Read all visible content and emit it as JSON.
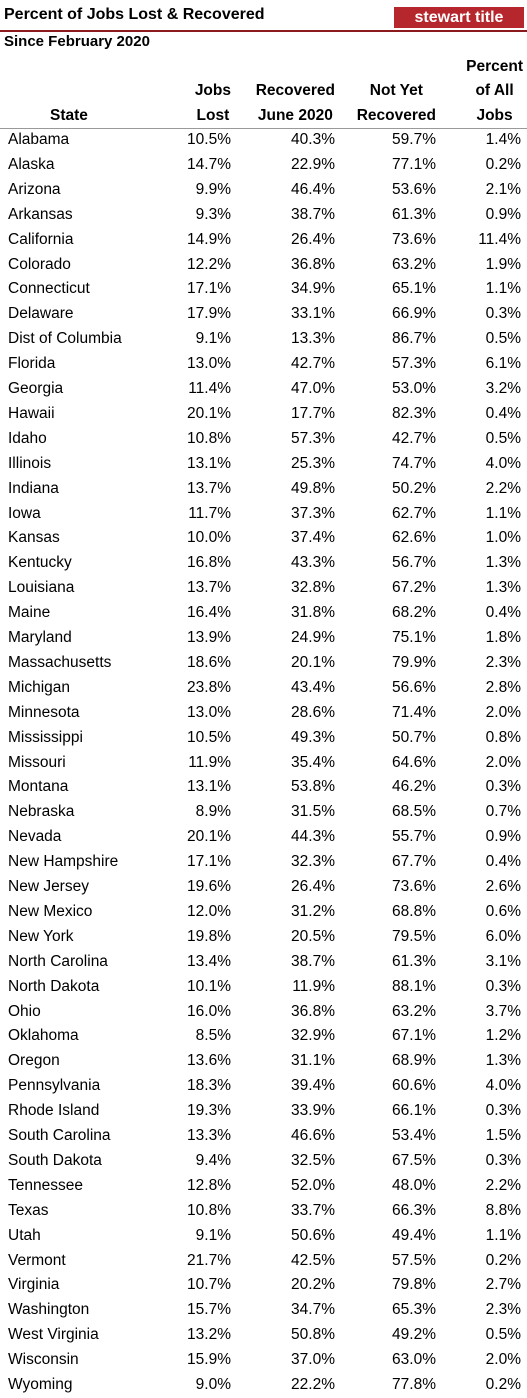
{
  "header": {
    "title": "Percent of Jobs Lost & Recovered",
    "logo": "stewart title",
    "subtitle": "Since February 2020"
  },
  "table": {
    "columns": [
      "State",
      "Jobs\nLost",
      "Recovered\nJune 2020",
      "Not Yet\nRecovered",
      "Percent\nof All\nJobs"
    ],
    "rows": [
      [
        "Alabama",
        "10.5%",
        "40.3%",
        "59.7%",
        "1.4%"
      ],
      [
        "Alaska",
        "14.7%",
        "22.9%",
        "77.1%",
        "0.2%"
      ],
      [
        "Arizona",
        "9.9%",
        "46.4%",
        "53.6%",
        "2.1%"
      ],
      [
        "Arkansas",
        "9.3%",
        "38.7%",
        "61.3%",
        "0.9%"
      ],
      [
        "California",
        "14.9%",
        "26.4%",
        "73.6%",
        "11.4%"
      ],
      [
        "Colorado",
        "12.2%",
        "36.8%",
        "63.2%",
        "1.9%"
      ],
      [
        "Connecticut",
        "17.1%",
        "34.9%",
        "65.1%",
        "1.1%"
      ],
      [
        "Delaware",
        "17.9%",
        "33.1%",
        "66.9%",
        "0.3%"
      ],
      [
        "Dist of Columbia",
        "9.1%",
        "13.3%",
        "86.7%",
        "0.5%"
      ],
      [
        "Florida",
        "13.0%",
        "42.7%",
        "57.3%",
        "6.1%"
      ],
      [
        "Georgia",
        "11.4%",
        "47.0%",
        "53.0%",
        "3.2%"
      ],
      [
        "Hawaii",
        "20.1%",
        "17.7%",
        "82.3%",
        "0.4%"
      ],
      [
        "Idaho",
        "10.8%",
        "57.3%",
        "42.7%",
        "0.5%"
      ],
      [
        "Illinois",
        "13.1%",
        "25.3%",
        "74.7%",
        "4.0%"
      ],
      [
        "Indiana",
        "13.7%",
        "49.8%",
        "50.2%",
        "2.2%"
      ],
      [
        "Iowa",
        "11.7%",
        "37.3%",
        "62.7%",
        "1.1%"
      ],
      [
        "Kansas",
        "10.0%",
        "37.4%",
        "62.6%",
        "1.0%"
      ],
      [
        "Kentucky",
        "16.8%",
        "43.3%",
        "56.7%",
        "1.3%"
      ],
      [
        "Louisiana",
        "13.7%",
        "32.8%",
        "67.2%",
        "1.3%"
      ],
      [
        "Maine",
        "16.4%",
        "31.8%",
        "68.2%",
        "0.4%"
      ],
      [
        "Maryland",
        "13.9%",
        "24.9%",
        "75.1%",
        "1.8%"
      ],
      [
        "Massachusetts",
        "18.6%",
        "20.1%",
        "79.9%",
        "2.3%"
      ],
      [
        "Michigan",
        "23.8%",
        "43.4%",
        "56.6%",
        "2.8%"
      ],
      [
        "Minnesota",
        "13.0%",
        "28.6%",
        "71.4%",
        "2.0%"
      ],
      [
        "Mississippi",
        "10.5%",
        "49.3%",
        "50.7%",
        "0.8%"
      ],
      [
        "Missouri",
        "11.9%",
        "35.4%",
        "64.6%",
        "2.0%"
      ],
      [
        "Montana",
        "13.1%",
        "53.8%",
        "46.2%",
        "0.3%"
      ],
      [
        "Nebraska",
        "8.9%",
        "31.5%",
        "68.5%",
        "0.7%"
      ],
      [
        "Nevada",
        "20.1%",
        "44.3%",
        "55.7%",
        "0.9%"
      ],
      [
        "New Hampshire",
        "17.1%",
        "32.3%",
        "67.7%",
        "0.4%"
      ],
      [
        "New Jersey",
        "19.6%",
        "26.4%",
        "73.6%",
        "2.6%"
      ],
      [
        "New Mexico",
        "12.0%",
        "31.2%",
        "68.8%",
        "0.6%"
      ],
      [
        "New York",
        "19.8%",
        "20.5%",
        "79.5%",
        "6.0%"
      ],
      [
        "North Carolina",
        "13.4%",
        "38.7%",
        "61.3%",
        "3.1%"
      ],
      [
        "North Dakota",
        "10.1%",
        "11.9%",
        "88.1%",
        "0.3%"
      ],
      [
        "Ohio",
        "16.0%",
        "36.8%",
        "63.2%",
        "3.7%"
      ],
      [
        "Oklahoma",
        "8.5%",
        "32.9%",
        "67.1%",
        "1.2%"
      ],
      [
        "Oregon",
        "13.6%",
        "31.1%",
        "68.9%",
        "1.3%"
      ],
      [
        "Pennsylvania",
        "18.3%",
        "39.4%",
        "60.6%",
        "4.0%"
      ],
      [
        "Rhode Island",
        "19.3%",
        "33.9%",
        "66.1%",
        "0.3%"
      ],
      [
        "South Carolina",
        "13.3%",
        "46.6%",
        "53.4%",
        "1.5%"
      ],
      [
        "South Dakota",
        "9.4%",
        "32.5%",
        "67.5%",
        "0.3%"
      ],
      [
        "Tennessee",
        "12.8%",
        "52.0%",
        "48.0%",
        "2.2%"
      ],
      [
        "Texas",
        "10.8%",
        "33.7%",
        "66.3%",
        "8.8%"
      ],
      [
        "Utah",
        "9.1%",
        "50.6%",
        "49.4%",
        "1.1%"
      ],
      [
        "Vermont",
        "21.7%",
        "42.5%",
        "57.5%",
        "0.2%"
      ],
      [
        "Virginia",
        "10.7%",
        "20.2%",
        "79.8%",
        "2.7%"
      ],
      [
        "Washington",
        "15.7%",
        "34.7%",
        "65.3%",
        "2.3%"
      ],
      [
        "West Virginia",
        "13.2%",
        "50.8%",
        "49.2%",
        "0.5%"
      ],
      [
        "Wisconsin",
        "15.9%",
        "37.0%",
        "63.0%",
        "2.0%"
      ],
      [
        "Wyoming",
        "9.0%",
        "22.2%",
        "77.8%",
        "0.2%"
      ]
    ]
  }
}
